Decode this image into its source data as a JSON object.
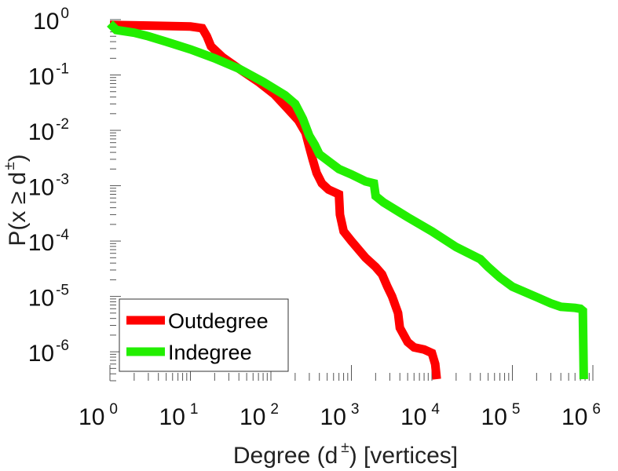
{
  "chart_data": {
    "type": "line",
    "xscale": "log",
    "yscale": "log",
    "xlim": [
      1,
      1000000
    ],
    "ylim": [
      3e-07,
      1
    ],
    "xlabel": {
      "prefix": "Degree (d",
      "sup": "±",
      "suffix": ") [vertices]"
    },
    "ylabel": {
      "prefix": "P(x ",
      "op": "≥",
      "mid": " d",
      "sup": "±",
      "suffix": ")"
    },
    "x_ticks": [
      {
        "value": 1,
        "base": "10",
        "exp": "0"
      },
      {
        "value": 10,
        "base": "10",
        "exp": "1"
      },
      {
        "value": 100,
        "base": "10",
        "exp": "2"
      },
      {
        "value": 1000,
        "base": "10",
        "exp": "3"
      },
      {
        "value": 10000,
        "base": "10",
        "exp": "4"
      },
      {
        "value": 100000,
        "base": "10",
        "exp": "5"
      },
      {
        "value": 1000000,
        "base": "10",
        "exp": "6"
      }
    ],
    "y_ticks": [
      {
        "value": 1,
        "base": "10",
        "exp": "0"
      },
      {
        "value": 0.1,
        "base": "10",
        "exp": "-1"
      },
      {
        "value": 0.01,
        "base": "10",
        "exp": "-2"
      },
      {
        "value": 0.001,
        "base": "10",
        "exp": "-3"
      },
      {
        "value": 0.0001,
        "base": "10",
        "exp": "-4"
      },
      {
        "value": 1e-05,
        "base": "10",
        "exp": "-5"
      },
      {
        "value": 1e-06,
        "base": "10",
        "exp": "-6"
      }
    ],
    "grid": false,
    "legend_position": "bottom-left",
    "series": [
      {
        "name": "Outdegree",
        "color": "#ff0000",
        "points": [
          [
            1,
            0.8
          ],
          [
            3,
            0.78
          ],
          [
            10,
            0.75
          ],
          [
            14,
            0.7
          ],
          [
            16,
            0.5
          ],
          [
            18,
            0.33
          ],
          [
            25,
            0.21
          ],
          [
            40,
            0.13
          ],
          [
            70,
            0.075
          ],
          [
            110,
            0.045
          ],
          [
            160,
            0.025
          ],
          [
            220,
            0.015
          ],
          [
            270,
            0.009
          ],
          [
            300,
            0.005
          ],
          [
            330,
            0.003
          ],
          [
            370,
            0.0017
          ],
          [
            430,
            0.0011
          ],
          [
            520,
            0.00085
          ],
          [
            700,
            0.0007
          ],
          [
            720,
            0.0003
          ],
          [
            800,
            0.00015
          ],
          [
            1000,
            0.0001
          ],
          [
            1500,
            5e-05
          ],
          [
            2000,
            3.4e-05
          ],
          [
            2400,
            2.5e-05
          ],
          [
            2800,
            1.5e-05
          ],
          [
            3200,
            1e-05
          ],
          [
            3800,
            5e-06
          ],
          [
            4000,
            2.7e-06
          ],
          [
            5000,
            1.5e-06
          ],
          [
            6000,
            1.2e-06
          ],
          [
            8000,
            1.1e-06
          ],
          [
            10000,
            9.5e-07
          ],
          [
            11000,
            6e-07
          ],
          [
            11500,
            3.2e-07
          ]
        ]
      },
      {
        "name": "Indegree",
        "color": "#22ee00",
        "points": [
          [
            1,
            0.85
          ],
          [
            1.2,
            0.65
          ],
          [
            2,
            0.58
          ],
          [
            3,
            0.5
          ],
          [
            5,
            0.4
          ],
          [
            10,
            0.29
          ],
          [
            20,
            0.2
          ],
          [
            40,
            0.13
          ],
          [
            80,
            0.075
          ],
          [
            150,
            0.043
          ],
          [
            200,
            0.03
          ],
          [
            250,
            0.016
          ],
          [
            300,
            0.008
          ],
          [
            350,
            0.0055
          ],
          [
            400,
            0.0037
          ],
          [
            500,
            0.0029
          ],
          [
            700,
            0.002
          ],
          [
            1000,
            0.0016
          ],
          [
            1500,
            0.0012
          ],
          [
            1900,
            0.0011
          ],
          [
            2000,
            0.00065
          ],
          [
            2500,
            0.0005
          ],
          [
            5000,
            0.00027
          ],
          [
            10000,
            0.00015
          ],
          [
            20000,
            7.8e-05
          ],
          [
            40000,
            4.7e-05
          ],
          [
            50000,
            3.4e-05
          ],
          [
            70000,
            2.2e-05
          ],
          [
            100000,
            1.5e-05
          ],
          [
            200000,
            9.7e-06
          ],
          [
            300000,
            7.5e-06
          ],
          [
            400000,
            6.5e-06
          ],
          [
            600000,
            6.2e-06
          ],
          [
            700000,
            6e-06
          ],
          [
            750000,
            5.5e-06
          ],
          [
            770000,
            3.2e-07
          ]
        ]
      }
    ]
  }
}
